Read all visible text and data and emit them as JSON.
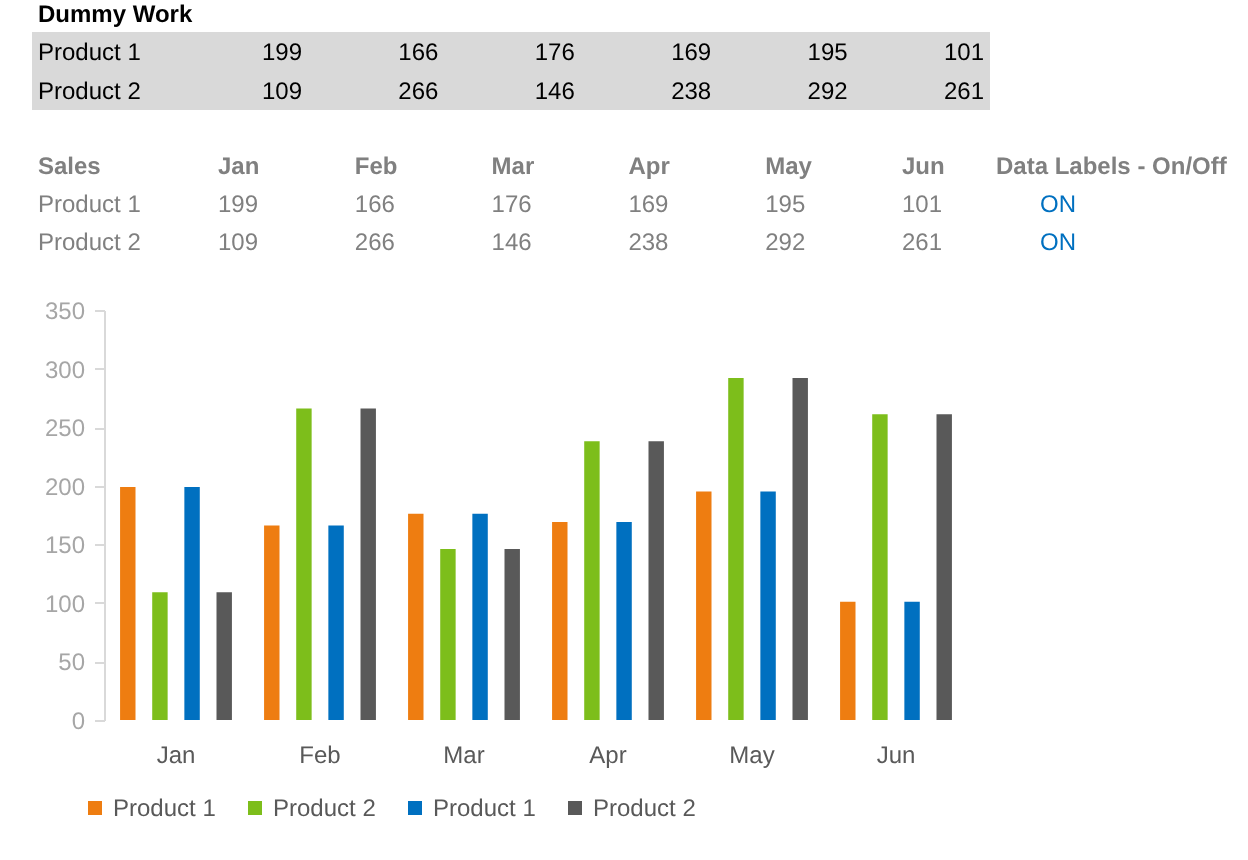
{
  "chart_data": [
    {
      "type": "other",
      "title": "Dummy Work",
      "annotations": [
        "Product 1",
        "199",
        "166",
        "176",
        "169",
        "195",
        "101",
        "Product 2",
        "109",
        "266",
        "146",
        "238",
        "292",
        "261"
      ]
    },
    {
      "type": "bar",
      "categories": [
        "Jan",
        "Feb",
        "Mar",
        "Apr",
        "May",
        "Jun"
      ],
      "series": [
        {
          "name": "Product 1",
          "color": "#ee7d11",
          "values": [
            199,
            166,
            176,
            169,
            195,
            101
          ],
          "value_labels": [
            "199",
            "166",
            "176",
            "169",
            "195",
            "101"
          ]
        },
        {
          "name": "Product 2",
          "color": "#7dbe1b",
          "values": [
            109,
            266,
            146,
            238,
            292,
            261
          ],
          "value_labels": [
            "109",
            "266",
            "146",
            "238",
            "292",
            "261"
          ]
        },
        {
          "name": "Product 1",
          "color": "#0070c0",
          "values": [
            199,
            166,
            176,
            169,
            195,
            101
          ]
        },
        {
          "name": "Product 2",
          "color": "#595959",
          "values": [
            109,
            266,
            146,
            238,
            292,
            261
          ]
        }
      ],
      "ylim": [
        0,
        350
      ],
      "yticks": [
        0,
        50,
        100,
        150,
        200,
        250,
        300,
        350
      ],
      "legend": "bottom left",
      "annotations": [
        "Sales",
        "Data Labels - On/Off",
        "ON",
        "ON"
      ]
    }
  ]
}
